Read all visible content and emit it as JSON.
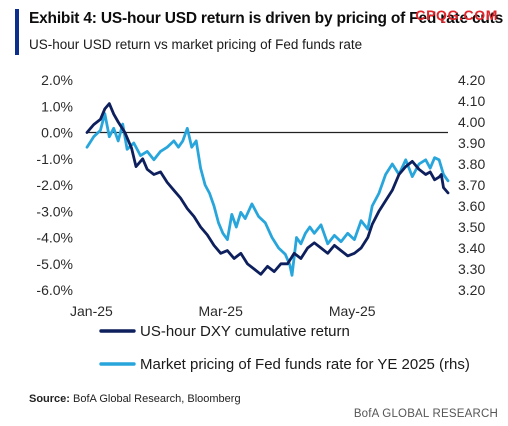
{
  "header": {
    "title": "Exhibit 4: US-hour USD return is driven by pricing of Fed rate cuts",
    "subtitle": "US-hour USD return vs market pricing of Fed funds rate",
    "watermark": "CPQG.COM"
  },
  "footer": {
    "source_label": "Source:",
    "source_text": "BofA Global Research, Bloomberg",
    "brand": "BofA GLOBAL RESEARCH"
  },
  "colors": {
    "series_dxy": "#0d1f5c",
    "series_fed": "#28a6dc",
    "zero_line": "#222222",
    "accent": "#0b2f8a",
    "watermark": "#e0262b"
  },
  "chart_data": {
    "type": "line",
    "x_tick_labels": [
      "Jan-25",
      "Mar-25",
      "May-25"
    ],
    "x_tick_dates": [
      "2025-01-02",
      "2025-03-03",
      "2025-05-01"
    ],
    "x_range": [
      "2025-01-02",
      "2025-06-13"
    ],
    "ylim_left": [
      -6.0,
      2.0
    ],
    "ylim_right": [
      3.2,
      4.2
    ],
    "y_left_ticks": [
      "2.0%",
      "1.0%",
      "0.0%",
      "-1.0%",
      "-2.0%",
      "-3.0%",
      "-4.0%",
      "-5.0%",
      "-6.0%"
    ],
    "y_right_ticks": [
      "4.20",
      "4.10",
      "4.00",
      "3.90",
      "3.80",
      "3.70",
      "3.60",
      "3.50",
      "3.40",
      "3.30",
      "3.20"
    ],
    "reference_line": 0.0,
    "grid": false,
    "legend_position": "bottom",
    "series": [
      {
        "name": "US-hour DXY cumulative return",
        "axis": "left",
        "color": "#0d1f5c",
        "points": [
          [
            "2025-01-02",
            0.0
          ],
          [
            "2025-01-05",
            0.3
          ],
          [
            "2025-01-08",
            0.5
          ],
          [
            "2025-01-10",
            0.9
          ],
          [
            "2025-01-12",
            1.1
          ],
          [
            "2025-01-14",
            0.7
          ],
          [
            "2025-01-16",
            0.4
          ],
          [
            "2025-01-19",
            0.0
          ],
          [
            "2025-01-22",
            -0.6
          ],
          [
            "2025-01-24",
            -1.3
          ],
          [
            "2025-01-27",
            -1.0
          ],
          [
            "2025-01-29",
            -1.4
          ],
          [
            "2025-02-01",
            -1.6
          ],
          [
            "2025-02-04",
            -1.5
          ],
          [
            "2025-02-07",
            -1.9
          ],
          [
            "2025-02-10",
            -2.2
          ],
          [
            "2025-02-13",
            -2.5
          ],
          [
            "2025-02-16",
            -2.9
          ],
          [
            "2025-02-19",
            -3.2
          ],
          [
            "2025-02-22",
            -3.6
          ],
          [
            "2025-02-25",
            -3.9
          ],
          [
            "2025-02-28",
            -4.3
          ],
          [
            "2025-03-03",
            -4.6
          ],
          [
            "2025-03-06",
            -4.5
          ],
          [
            "2025-03-09",
            -4.8
          ],
          [
            "2025-03-12",
            -4.6
          ],
          [
            "2025-03-15",
            -5.0
          ],
          [
            "2025-03-18",
            -5.2
          ],
          [
            "2025-03-21",
            -5.4
          ],
          [
            "2025-03-24",
            -5.1
          ],
          [
            "2025-03-27",
            -5.3
          ],
          [
            "2025-03-30",
            -5.0
          ],
          [
            "2025-04-02",
            -5.0
          ],
          [
            "2025-04-05",
            -4.6
          ],
          [
            "2025-04-08",
            -4.8
          ],
          [
            "2025-04-11",
            -4.4
          ],
          [
            "2025-04-14",
            -4.2
          ],
          [
            "2025-04-17",
            -4.4
          ],
          [
            "2025-04-20",
            -4.6
          ],
          [
            "2025-04-23",
            -4.3
          ],
          [
            "2025-04-26",
            -4.5
          ],
          [
            "2025-04-29",
            -4.7
          ],
          [
            "2025-05-02",
            -4.6
          ],
          [
            "2025-05-05",
            -4.4
          ],
          [
            "2025-05-08",
            -4.0
          ],
          [
            "2025-05-10",
            -3.5
          ],
          [
            "2025-05-13",
            -3.0
          ],
          [
            "2025-05-16",
            -2.6
          ],
          [
            "2025-05-19",
            -2.2
          ],
          [
            "2025-05-22",
            -1.6
          ],
          [
            "2025-05-25",
            -1.3
          ],
          [
            "2025-05-28",
            -1.1
          ],
          [
            "2025-05-31",
            -1.4
          ],
          [
            "2025-06-03",
            -1.6
          ],
          [
            "2025-06-05",
            -1.5
          ],
          [
            "2025-06-07",
            -1.8
          ],
          [
            "2025-06-09",
            -1.7
          ],
          [
            "2025-06-10",
            -1.6
          ],
          [
            "2025-06-11",
            -2.1
          ],
          [
            "2025-06-13",
            -2.3
          ]
        ]
      },
      {
        "name": "Market pricing of Fed funds rate for YE 2025 (rhs)",
        "axis": "right",
        "color": "#28a6dc",
        "points": [
          [
            "2025-01-02",
            3.88
          ],
          [
            "2025-01-05",
            3.93
          ],
          [
            "2025-01-08",
            3.96
          ],
          [
            "2025-01-10",
            4.04
          ],
          [
            "2025-01-12",
            3.93
          ],
          [
            "2025-01-14",
            3.97
          ],
          [
            "2025-01-16",
            3.91
          ],
          [
            "2025-01-18",
            3.99
          ],
          [
            "2025-01-20",
            3.87
          ],
          [
            "2025-01-23",
            3.9
          ],
          [
            "2025-01-26",
            3.84
          ],
          [
            "2025-01-29",
            3.86
          ],
          [
            "2025-02-01",
            3.82
          ],
          [
            "2025-02-04",
            3.86
          ],
          [
            "2025-02-07",
            3.88
          ],
          [
            "2025-02-10",
            3.91
          ],
          [
            "2025-02-12",
            3.88
          ],
          [
            "2025-02-14",
            3.91
          ],
          [
            "2025-02-16",
            3.97
          ],
          [
            "2025-02-18",
            3.88
          ],
          [
            "2025-02-20",
            3.91
          ],
          [
            "2025-02-22",
            3.78
          ],
          [
            "2025-02-24",
            3.7
          ],
          [
            "2025-02-26",
            3.66
          ],
          [
            "2025-02-28",
            3.6
          ],
          [
            "2025-03-02",
            3.52
          ],
          [
            "2025-03-04",
            3.47
          ],
          [
            "2025-03-06",
            3.44
          ],
          [
            "2025-03-08",
            3.56
          ],
          [
            "2025-03-10",
            3.5
          ],
          [
            "2025-03-12",
            3.57
          ],
          [
            "2025-03-14",
            3.54
          ],
          [
            "2025-03-17",
            3.61
          ],
          [
            "2025-03-20",
            3.55
          ],
          [
            "2025-03-23",
            3.52
          ],
          [
            "2025-03-26",
            3.45
          ],
          [
            "2025-03-29",
            3.4
          ],
          [
            "2025-04-01",
            3.37
          ],
          [
            "2025-04-03",
            3.32
          ],
          [
            "2025-04-04",
            3.27
          ],
          [
            "2025-04-06",
            3.45
          ],
          [
            "2025-04-08",
            3.42
          ],
          [
            "2025-04-10",
            3.47
          ],
          [
            "2025-04-12",
            3.5
          ],
          [
            "2025-04-14",
            3.47
          ],
          [
            "2025-04-17",
            3.51
          ],
          [
            "2025-04-20",
            3.42
          ],
          [
            "2025-04-23",
            3.46
          ],
          [
            "2025-04-26",
            3.43
          ],
          [
            "2025-04-29",
            3.47
          ],
          [
            "2025-05-02",
            3.44
          ],
          [
            "2025-05-05",
            3.53
          ],
          [
            "2025-05-08",
            3.49
          ],
          [
            "2025-05-10",
            3.6
          ],
          [
            "2025-05-13",
            3.66
          ],
          [
            "2025-05-16",
            3.75
          ],
          [
            "2025-05-19",
            3.8
          ],
          [
            "2025-05-22",
            3.75
          ],
          [
            "2025-05-25",
            3.82
          ],
          [
            "2025-05-28",
            3.74
          ],
          [
            "2025-05-31",
            3.8
          ],
          [
            "2025-06-03",
            3.82
          ],
          [
            "2025-06-05",
            3.78
          ],
          [
            "2025-06-07",
            3.83
          ],
          [
            "2025-06-09",
            3.82
          ],
          [
            "2025-06-11",
            3.75
          ],
          [
            "2025-06-13",
            3.72
          ]
        ]
      }
    ]
  }
}
